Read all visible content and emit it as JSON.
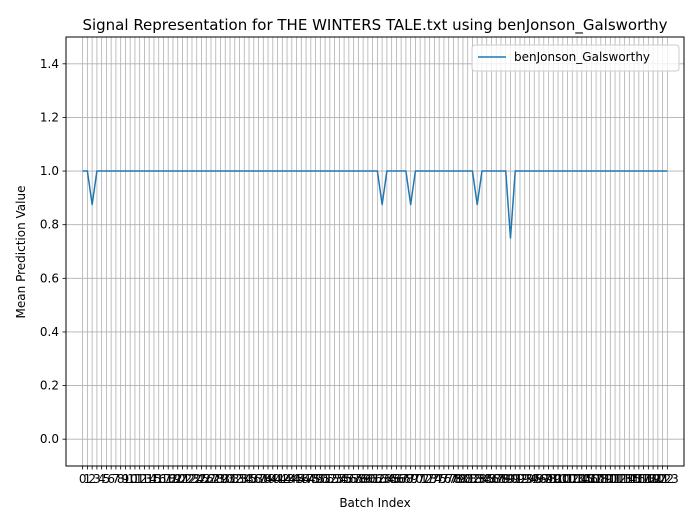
{
  "chart_data": {
    "type": "line",
    "title": "Signal Representation for THE WINTERS TALE.txt using benJonson_Galsworthy",
    "xlabel": "Batch Index",
    "ylabel": "Mean Prediction Value",
    "xlim": [
      -3.5,
      126.5
    ],
    "ylim": [
      -0.1,
      1.5
    ],
    "yticks": [
      0.0,
      0.2,
      0.4,
      0.6,
      0.8,
      1.0,
      1.2,
      1.4
    ],
    "ytick_labels": [
      "0.0",
      "0.2",
      "0.4",
      "0.6",
      "0.8",
      "1.0",
      "1.2",
      "1.4"
    ],
    "x_start": 0,
    "x_end": 123,
    "grid": true,
    "legend_position": "top-right",
    "series": [
      {
        "name": "benJonson_Galsworthy",
        "color": "#1f77b4",
        "baseline": 1.0,
        "dips": [
          {
            "x": 2,
            "y": 0.875
          },
          {
            "x": 63,
            "y": 0.875
          },
          {
            "x": 69,
            "y": 0.875
          },
          {
            "x": 83,
            "y": 0.875
          },
          {
            "x": 90,
            "y": 0.75
          }
        ]
      }
    ]
  }
}
